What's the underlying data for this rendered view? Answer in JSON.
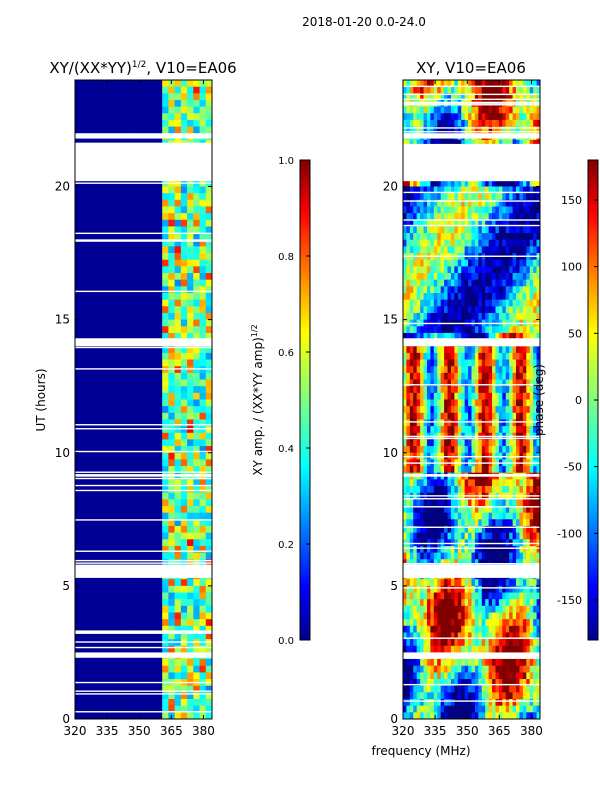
{
  "suptitle": "2018-01-20 0.0-24.0",
  "xlabel": "frequency (MHz)",
  "chart_data": [
    {
      "type": "heatmap",
      "title_main": "XY/(XX*YY)",
      "title_exp": "1/2",
      "title_tail": ", V10=EA06",
      "x": {
        "range": [
          320,
          384
        ],
        "ticks": [
          320,
          335,
          350,
          365,
          380
        ]
      },
      "y": {
        "label": "UT (hours)",
        "range": [
          0,
          24
        ],
        "ticks": [
          0,
          5,
          10,
          15,
          20
        ]
      },
      "colorbar": {
        "label_main": "XY amp. / (XX*YY amp)",
        "label_exp": "1/2",
        "range": [
          0.0,
          1.0
        ],
        "ticks": [
          "0.0",
          "0.2",
          "0.4",
          "0.6",
          "0.8",
          "1.0"
        ],
        "colormap": "jet"
      },
      "data_band_mhz": [
        361,
        384
      ],
      "gaps_hours": [
        [
          20.2,
          21.6
        ],
        [
          5.3,
          5.8
        ],
        [
          2.3,
          2.5
        ],
        [
          14.0,
          14.3
        ],
        [
          9.1,
          9.2
        ],
        [
          21.8,
          22.0
        ]
      ]
    },
    {
      "type": "heatmap",
      "title": "XY, V10=EA06",
      "x": {
        "range": [
          320,
          384
        ],
        "ticks": [
          320,
          335,
          350,
          365,
          380
        ]
      },
      "y": {
        "range": [
          0,
          24
        ],
        "ticks": [
          0,
          5,
          10,
          15,
          20
        ]
      },
      "colorbar": {
        "label": "phase (deg)",
        "range": [
          -180,
          180
        ],
        "ticks": [
          -150,
          -100,
          -50,
          0,
          50,
          100,
          150
        ],
        "colormap": "jet"
      },
      "gaps_hours": [
        [
          20.2,
          21.6
        ],
        [
          5.3,
          5.8
        ],
        [
          2.3,
          2.5
        ],
        [
          14.0,
          14.3
        ],
        [
          9.1,
          9.2
        ],
        [
          21.8,
          22.0
        ]
      ]
    }
  ]
}
